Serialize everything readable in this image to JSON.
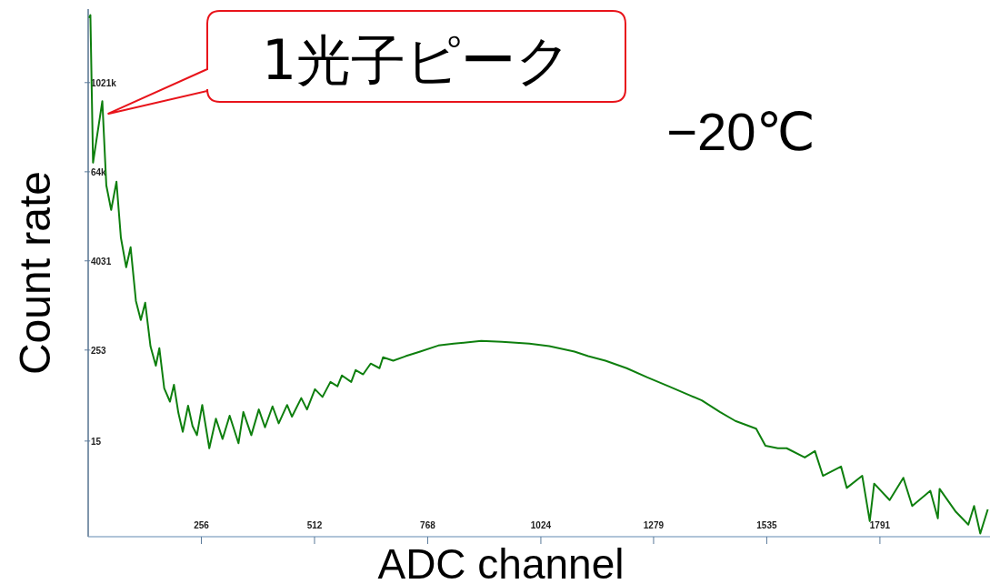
{
  "chart_data": {
    "type": "line",
    "xlabel": "ADC channel",
    "ylabel": "Count rate",
    "annotations": [
      {
        "text": "1光子ピーク",
        "x": 32,
        "y": 574000
      },
      "−20℃"
    ],
    "log": "y",
    "xlim": [
      0,
      2040
    ],
    "ylim": [
      0.77,
      10000000
    ],
    "xticks": [
      256,
      512,
      768,
      1024,
      1279,
      1535,
      1791
    ],
    "yticks": [
      15,
      253,
      4031,
      {
        "value": 64000,
        "label": "64k"
      },
      {
        "value": 1021000,
        "label": "1021k"
      }
    ],
    "x": [
      2,
      5,
      11,
      32,
      41,
      52,
      64,
      74,
      86,
      96,
      108,
      119,
      129,
      141,
      153,
      161,
      172,
      185,
      194,
      204,
      214,
      226,
      236,
      246,
      258,
      274,
      289,
      304,
      320,
      340,
      351,
      369,
      386,
      400,
      417,
      431,
      450,
      461,
      482,
      495,
      513,
      530,
      548,
      564,
      574,
      595,
      605,
      622,
      639,
      659,
      667,
      690,
      718,
      751,
      792,
      827,
      889,
      936,
      998,
      1043,
      1100,
      1131,
      1170,
      1218,
      1265,
      1313,
      1361,
      1388,
      1429,
      1464,
      1511,
      1532,
      1560,
      1580,
      1621,
      1644,
      1662,
      1703,
      1716,
      1751,
      1768,
      1778,
      1813,
      1844,
      1864,
      1905,
      1922,
      1926,
      1963,
      1991,
      2004,
      2018,
      2035
    ],
    "series": [
      {
        "color": "#0e7f0e",
        "values": [
          7600000,
          8300000,
          85000,
          574000,
          42000,
          19600,
          47100,
          8280,
          3310,
          6150,
          1160,
          643,
          1100,
          283,
          156,
          268,
          77,
          51,
          86,
          36,
          20,
          45,
          24,
          18,
          46,
          12,
          30,
          16,
          33,
          14,
          37,
          18,
          40,
          23,
          44,
          26,
          46,
          32,
          57,
          40,
          75,
          59,
          94,
          82,
          115,
          94,
          136,
          119,
          166,
          144,
          202,
          182,
          209,
          241,
          291,
          308,
          336,
          326,
          308,
          286,
          241,
          209,
          182,
          144,
          108,
          82,
          62,
          53,
          37,
          28,
          22,
          13,
          12,
          12,
          9.0,
          11,
          5.1,
          6.8,
          3.5,
          5.1,
          1.25,
          4.0,
          2.4,
          4.8,
          2.0,
          3.2,
          1.36,
          3.4,
          1.66,
          1.12,
          2.0,
          0.85,
          1.8
        ]
      }
    ]
  }
}
